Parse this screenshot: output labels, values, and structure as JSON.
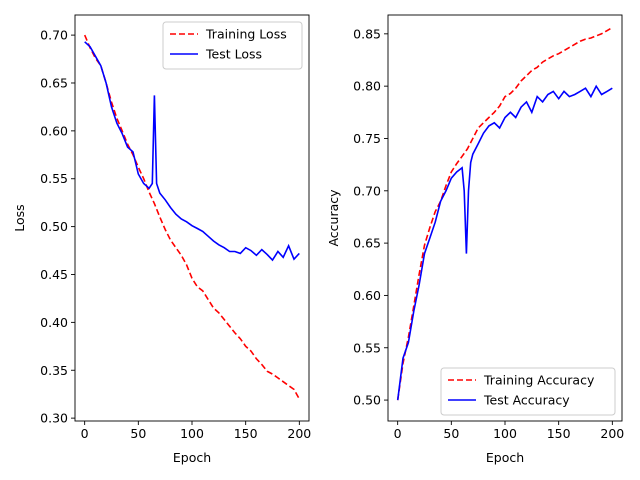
{
  "chart_data": [
    {
      "type": "line",
      "title": "",
      "xlabel": "Epoch",
      "ylabel": "Loss",
      "xlim": [
        -9,
        209
      ],
      "ylim": [
        0.297,
        0.721
      ],
      "xticks": [
        0,
        50,
        100,
        150,
        200
      ],
      "yticks": [
        0.3,
        0.35,
        0.4,
        0.45,
        0.5,
        0.55,
        0.6,
        0.65,
        0.7
      ],
      "ytick_decimals": 2,
      "grid": false,
      "legend": "top-right",
      "series": [
        {
          "name": "Training Loss",
          "color": "#ff0000",
          "style": "dashed",
          "x": [
            0,
            5,
            10,
            15,
            20,
            25,
            30,
            35,
            40,
            45,
            50,
            55,
            60,
            65,
            70,
            75,
            80,
            85,
            90,
            95,
            100,
            105,
            110,
            115,
            120,
            125,
            130,
            135,
            140,
            145,
            150,
            155,
            160,
            165,
            170,
            175,
            180,
            185,
            190,
            195,
            200
          ],
          "y": [
            0.7,
            0.687,
            0.676,
            0.668,
            0.65,
            0.63,
            0.613,
            0.6,
            0.586,
            0.575,
            0.562,
            0.55,
            0.536,
            0.524,
            0.51,
            0.497,
            0.486,
            0.478,
            0.47,
            0.46,
            0.446,
            0.437,
            0.433,
            0.424,
            0.415,
            0.41,
            0.403,
            0.396,
            0.389,
            0.383,
            0.375,
            0.37,
            0.362,
            0.356,
            0.349,
            0.346,
            0.342,
            0.338,
            0.334,
            0.33,
            0.32
          ]
        },
        {
          "name": "Test Loss",
          "color": "#0000ff",
          "style": "solid",
          "x": [
            0,
            5,
            10,
            15,
            20,
            25,
            30,
            35,
            40,
            45,
            50,
            55,
            60,
            63,
            65,
            67,
            70,
            75,
            80,
            85,
            90,
            95,
            100,
            105,
            110,
            115,
            120,
            125,
            130,
            135,
            140,
            145,
            150,
            155,
            160,
            165,
            170,
            175,
            180,
            185,
            190,
            195,
            200
          ],
          "y": [
            0.693,
            0.688,
            0.678,
            0.668,
            0.65,
            0.625,
            0.608,
            0.597,
            0.583,
            0.578,
            0.555,
            0.545,
            0.54,
            0.545,
            0.637,
            0.545,
            0.535,
            0.528,
            0.52,
            0.513,
            0.508,
            0.505,
            0.501,
            0.498,
            0.495,
            0.49,
            0.485,
            0.481,
            0.478,
            0.474,
            0.474,
            0.472,
            0.478,
            0.475,
            0.47,
            0.476,
            0.471,
            0.465,
            0.474,
            0.468,
            0.48,
            0.466,
            0.472
          ]
        }
      ]
    },
    {
      "type": "line",
      "title": "",
      "xlabel": "Epoch",
      "ylabel": "Accuracy",
      "xlim": [
        -9,
        209
      ],
      "ylim": [
        0.48,
        0.868
      ],
      "xticks": [
        0,
        50,
        100,
        150,
        200
      ],
      "yticks": [
        0.5,
        0.55,
        0.6,
        0.65,
        0.7,
        0.75,
        0.8,
        0.85
      ],
      "ytick_decimals": 2,
      "grid": false,
      "legend": "bottom-right",
      "series": [
        {
          "name": "Training Accuracy",
          "color": "#ff0000",
          "style": "dashed",
          "x": [
            0,
            5,
            10,
            15,
            20,
            25,
            30,
            35,
            40,
            45,
            50,
            55,
            60,
            65,
            70,
            75,
            80,
            85,
            90,
            95,
            100,
            105,
            110,
            115,
            120,
            125,
            130,
            135,
            140,
            145,
            150,
            155,
            160,
            165,
            170,
            175,
            180,
            185,
            190,
            195,
            200
          ],
          "y": [
            0.5,
            0.535,
            0.56,
            0.59,
            0.62,
            0.648,
            0.665,
            0.68,
            0.69,
            0.705,
            0.718,
            0.726,
            0.733,
            0.74,
            0.75,
            0.76,
            0.765,
            0.77,
            0.775,
            0.781,
            0.79,
            0.793,
            0.798,
            0.805,
            0.81,
            0.815,
            0.818,
            0.823,
            0.826,
            0.829,
            0.831,
            0.834,
            0.837,
            0.84,
            0.843,
            0.845,
            0.846,
            0.848,
            0.85,
            0.853,
            0.856
          ]
        },
        {
          "name": "Test Accuracy",
          "color": "#0000ff",
          "style": "solid",
          "x": [
            0,
            5,
            10,
            15,
            20,
            25,
            30,
            35,
            40,
            45,
            50,
            55,
            60,
            62,
            64,
            66,
            68,
            70,
            75,
            80,
            85,
            90,
            95,
            100,
            105,
            110,
            115,
            120,
            125,
            130,
            135,
            140,
            145,
            150,
            155,
            160,
            165,
            170,
            175,
            180,
            185,
            190,
            195,
            200
          ],
          "y": [
            0.5,
            0.54,
            0.555,
            0.585,
            0.61,
            0.64,
            0.655,
            0.67,
            0.69,
            0.7,
            0.712,
            0.718,
            0.722,
            0.7,
            0.64,
            0.7,
            0.727,
            0.735,
            0.745,
            0.755,
            0.762,
            0.765,
            0.76,
            0.77,
            0.775,
            0.77,
            0.78,
            0.785,
            0.775,
            0.79,
            0.785,
            0.792,
            0.795,
            0.788,
            0.795,
            0.79,
            0.792,
            0.795,
            0.798,
            0.79,
            0.8,
            0.792,
            0.795,
            0.798
          ]
        }
      ]
    }
  ]
}
